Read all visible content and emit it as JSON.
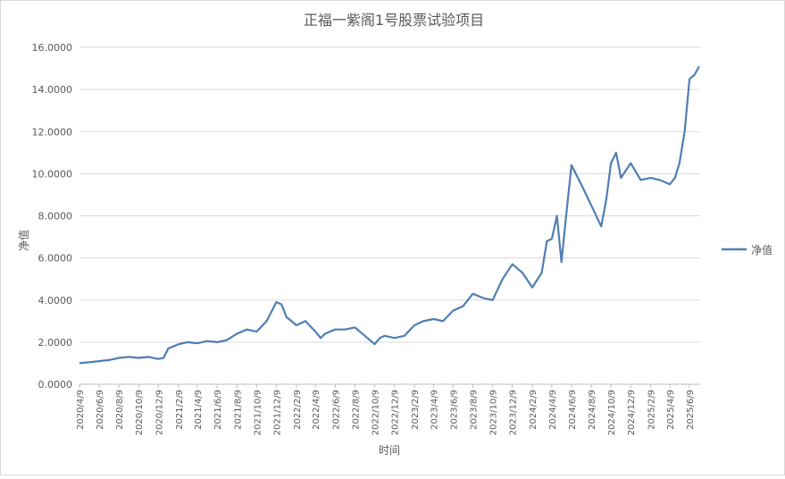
{
  "chart_data": {
    "type": "line",
    "title": "正福一紫阁1号股票试验项目",
    "xlabel": "时间",
    "ylabel": "净值",
    "ylim": [
      0,
      16
    ],
    "y_ticks": [
      "0.0000",
      "2.0000",
      "4.0000",
      "6.0000",
      "8.0000",
      "10.0000",
      "12.0000",
      "14.0000",
      "16.0000"
    ],
    "x_ticks": [
      "2020/4/9",
      "2020/6/9",
      "2020/8/9",
      "2020/10/9",
      "2020/12/9",
      "2021/2/9",
      "2021/4/9",
      "2021/6/9",
      "2021/8/9",
      "2021/10/9",
      "2021/12/9",
      "2022/2/9",
      "2022/4/9",
      "2022/6/9",
      "2022/8/9",
      "2022/10/9",
      "2022/12/9",
      "2023/2/9",
      "2023/4/9",
      "2023/6/9",
      "2023/8/9",
      "2023/10/9",
      "2023/12/9",
      "2024/2/9",
      "2024/4/9",
      "2024/6/9",
      "2024/8/9",
      "2024/10/9",
      "2024/12/9",
      "2025/2/9",
      "2025/4/9",
      "2025/6/9"
    ],
    "grid": "horizontal",
    "legend_position": "right",
    "colors": {
      "series": "#4f7eb3",
      "grid": "#d9d9d9",
      "axis": "#bfbfbf",
      "text": "#595959"
    },
    "series": [
      {
        "name": "净值",
        "x": [
          "2020/4/9",
          "2020/5/9",
          "2020/6/9",
          "2020/7/9",
          "2020/8/9",
          "2020/9/9",
          "2020/10/9",
          "2020/11/9",
          "2020/12/9",
          "2020/12/25",
          "2021/1/9",
          "2021/1/25",
          "2021/2/9",
          "2021/3/9",
          "2021/4/9",
          "2021/5/9",
          "2021/6/9",
          "2021/7/9",
          "2021/8/9",
          "2021/9/9",
          "2021/10/9",
          "2021/11/9",
          "2021/12/9",
          "2021/12/25",
          "2022/1/9",
          "2022/2/9",
          "2022/3/9",
          "2022/4/9",
          "2022/4/25",
          "2022/5/9",
          "2022/6/9",
          "2022/7/9",
          "2022/8/9",
          "2022/9/9",
          "2022/10/9",
          "2022/10/25",
          "2022/11/9",
          "2022/12/9",
          "2023/1/9",
          "2023/2/9",
          "2023/3/9",
          "2023/4/9",
          "2023/5/9",
          "2023/6/9",
          "2023/7/9",
          "2023/8/9",
          "2023/9/9",
          "2023/10/9",
          "2023/11/9",
          "2023/12/9",
          "2024/1/9",
          "2024/2/9",
          "2024/3/9",
          "2024/3/25",
          "2024/4/9",
          "2024/4/25",
          "2024/5/9",
          "2024/5/20",
          "2024/6/9",
          "2024/7/9",
          "2024/8/9",
          "2024/9/9",
          "2024/9/25",
          "2024/10/9",
          "2024/10/25",
          "2024/11/9",
          "2024/12/9",
          "2025/1/9",
          "2025/2/9",
          "2025/3/9",
          "2025/4/9",
          "2025/4/25",
          "2025/5/9",
          "2025/5/25",
          "2025/6/9",
          "2025/6/25",
          "2025/7/9"
        ],
        "values": [
          1.0,
          1.05,
          1.1,
          1.15,
          1.25,
          1.3,
          1.25,
          1.3,
          1.2,
          1.25,
          1.7,
          1.8,
          1.9,
          2.0,
          1.95,
          2.05,
          2.0,
          2.1,
          2.4,
          2.6,
          2.5,
          3.0,
          3.9,
          3.8,
          3.2,
          2.8,
          3.0,
          2.5,
          2.2,
          2.4,
          2.6,
          2.6,
          2.7,
          2.3,
          1.9,
          2.2,
          2.3,
          2.2,
          2.3,
          2.8,
          3.0,
          3.1,
          3.0,
          3.5,
          3.7,
          4.3,
          4.1,
          4.0,
          5.0,
          5.7,
          5.3,
          4.6,
          5.3,
          6.8,
          6.9,
          8.0,
          5.8,
          7.5,
          10.4,
          9.5,
          8.5,
          7.5,
          8.8,
          10.5,
          11.0,
          9.8,
          10.5,
          9.7,
          9.8,
          9.7,
          9.5,
          9.8,
          10.5,
          12.0,
          14.5,
          14.7,
          15.1
        ]
      }
    ]
  }
}
